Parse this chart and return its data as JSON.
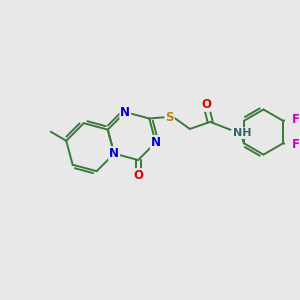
{
  "background_color": "#e8e8e8",
  "bond_color": "#3a7a3a",
  "atom_colors": {
    "N": "#0000cc",
    "O": "#dd0000",
    "S": "#b8860b",
    "F": "#cc00cc",
    "NH": "#336666"
  },
  "figsize": [
    3.0,
    3.0
  ],
  "dpi": 100,
  "xlim": [
    0,
    10
  ],
  "ylim": [
    0,
    10
  ]
}
